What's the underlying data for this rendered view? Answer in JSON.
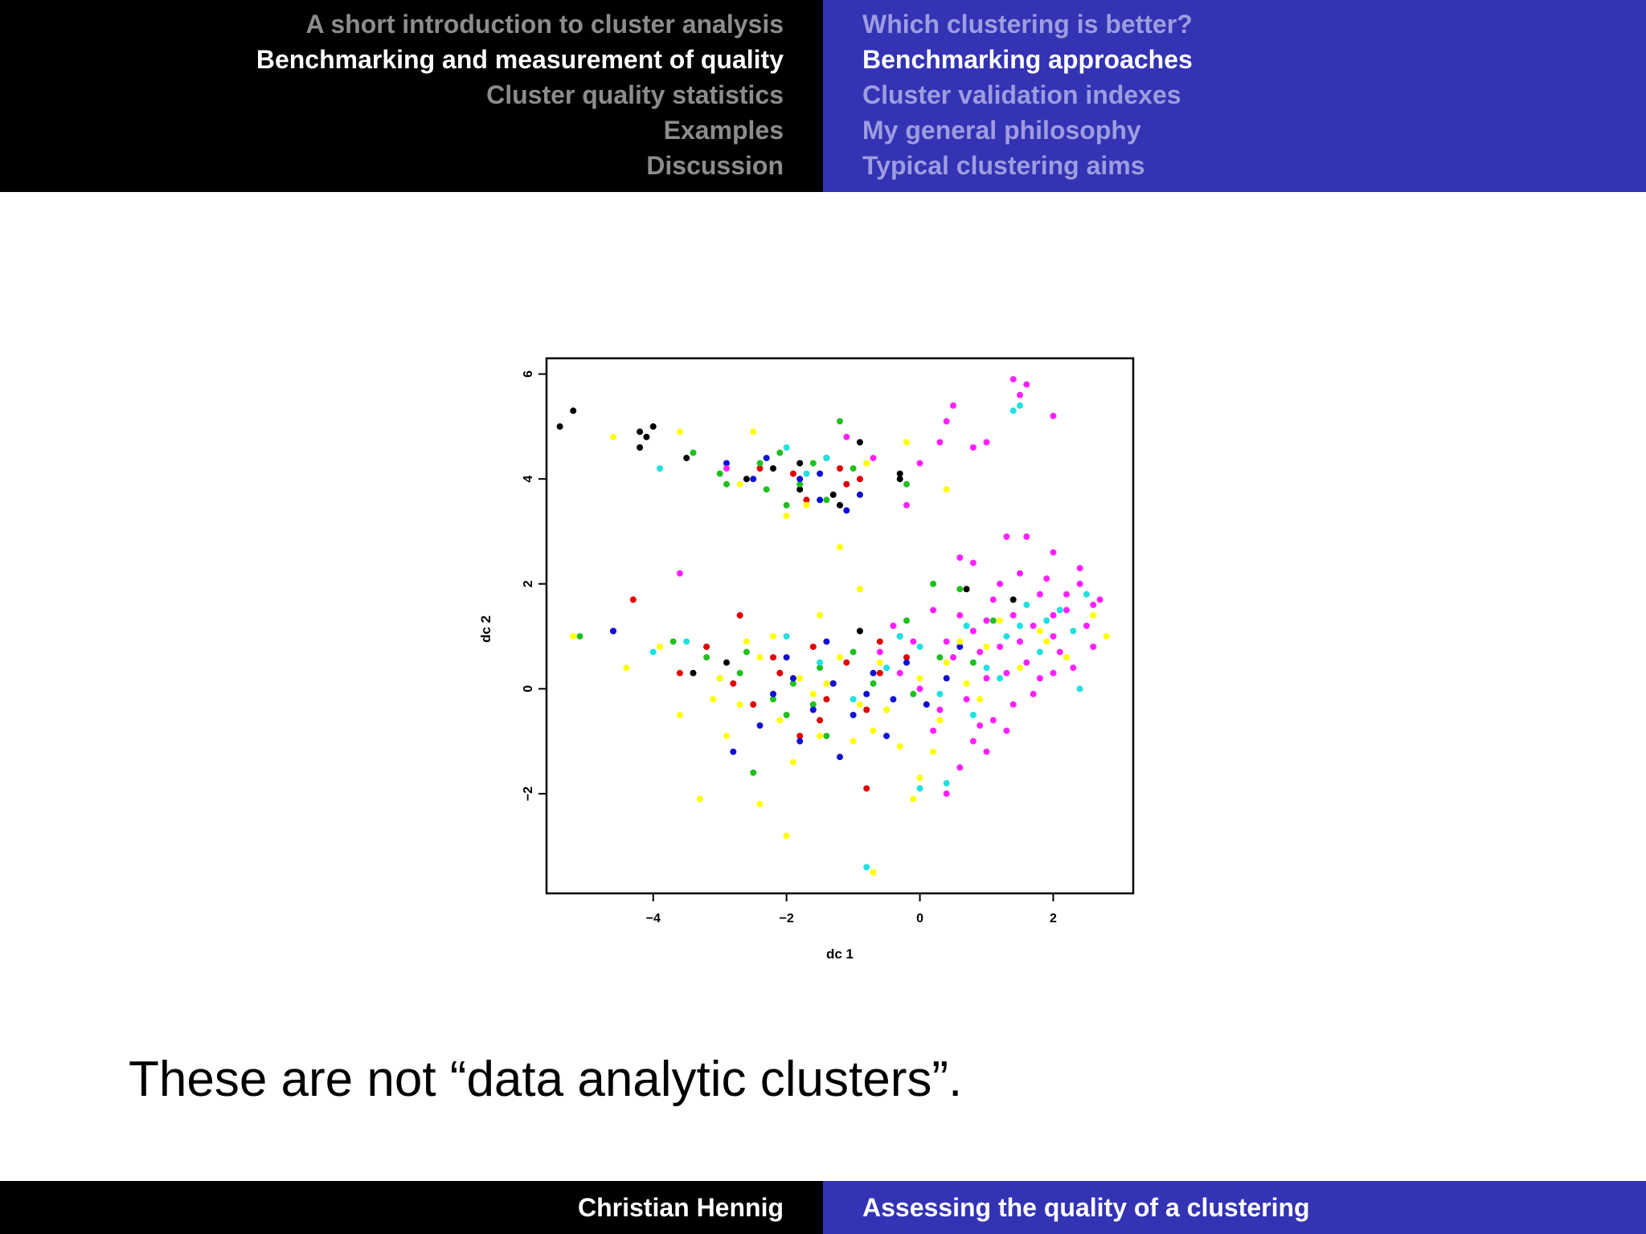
{
  "header": {
    "sections": [
      {
        "label": "A short introduction to cluster analysis",
        "active": false
      },
      {
        "label": "Benchmarking and measurement of quality",
        "active": true
      },
      {
        "label": "Cluster quality statistics",
        "active": false
      },
      {
        "label": "Examples",
        "active": false
      },
      {
        "label": "Discussion",
        "active": false
      }
    ],
    "subsections": [
      {
        "label": "Which clustering is better?",
        "active": false
      },
      {
        "label": "Benchmarking approaches",
        "active": true
      },
      {
        "label": "Cluster validation indexes",
        "active": false
      },
      {
        "label": "My general philosophy",
        "active": false
      },
      {
        "label": "Typical clustering aims",
        "active": false
      }
    ]
  },
  "caption": "These are not “data analytic clusters”.",
  "footer": {
    "author": "Christian Hennig",
    "title": "Assessing the quality of a clustering"
  },
  "colors": {
    "header_left_bg": "#000000",
    "header_right_bg": "#3333b3",
    "black": "#000000",
    "red": "#e00000",
    "green": "#20c020",
    "blue": "#1010d0",
    "cyan": "#20e0e0",
    "magenta": "#ff20ff",
    "yellow": "#ffff00"
  },
  "chart_data": {
    "type": "scatter",
    "xlabel": "dc 1",
    "ylabel": "dc 2",
    "xlim": [
      -5.6,
      3.2
    ],
    "ylim": [
      -3.9,
      6.3
    ],
    "xticks": [
      -4,
      -2,
      0,
      2
    ],
    "yticks": [
      -2,
      0,
      2,
      4,
      6
    ],
    "xtick_labels": [
      "−4",
      "−2",
      "0",
      "2"
    ],
    "ytick_labels": [
      "−2",
      "0",
      "2",
      "4",
      "6"
    ],
    "grid": false,
    "series": [
      {
        "color": "#000000",
        "points": [
          [
            -5.4,
            5.0
          ],
          [
            -5.2,
            5.3
          ],
          [
            -4.2,
            4.9
          ],
          [
            -4.0,
            5.0
          ],
          [
            -4.1,
            4.8
          ],
          [
            -4.2,
            4.6
          ],
          [
            -3.5,
            4.4
          ],
          [
            -2.6,
            4.0
          ],
          [
            -2.2,
            4.2
          ],
          [
            -1.8,
            3.8
          ],
          [
            -1.4,
            4.4
          ],
          [
            -1.3,
            3.7
          ],
          [
            -0.9,
            4.7
          ],
          [
            -0.3,
            4.0
          ],
          [
            -0.3,
            4.1
          ],
          [
            -0.9,
            1.1
          ],
          [
            -0.3,
            1.0
          ],
          [
            0.7,
            1.9
          ],
          [
            1.4,
            1.7
          ],
          [
            -3.4,
            0.3
          ],
          [
            -1.8,
            4.3
          ],
          [
            -1.2,
            3.5
          ],
          [
            -2.9,
            0.5
          ]
        ]
      },
      {
        "color": "#e00000",
        "points": [
          [
            -4.3,
            1.7
          ],
          [
            -4.6,
            1.1
          ],
          [
            -2.7,
            1.4
          ],
          [
            -3.2,
            0.8
          ],
          [
            -3.6,
            0.3
          ],
          [
            -2.4,
            4.2
          ],
          [
            -1.2,
            4.2
          ],
          [
            -1.1,
            3.9
          ],
          [
            -1.7,
            3.6
          ],
          [
            -0.9,
            4.0
          ],
          [
            -1.6,
            0.8
          ],
          [
            -2.1,
            0.3
          ],
          [
            -1.3,
            0.1
          ],
          [
            -0.8,
            -0.4
          ],
          [
            -0.2,
            0.6
          ],
          [
            -1.8,
            -0.9
          ],
          [
            -1.1,
            0.5
          ],
          [
            -0.6,
            0.9
          ],
          [
            -0.8,
            -1.9
          ],
          [
            -2.5,
            -0.3
          ],
          [
            -1.5,
            -0.6
          ],
          [
            -2.8,
            0.1
          ],
          [
            -1.9,
            4.1
          ],
          [
            -0.6,
            0.3
          ],
          [
            -1.4,
            -0.2
          ],
          [
            -2.2,
            0.6
          ]
        ]
      },
      {
        "color": "#20c020",
        "points": [
          [
            -5.1,
            1.0
          ],
          [
            -3.7,
            0.9
          ],
          [
            -3.2,
            0.6
          ],
          [
            -3.4,
            4.5
          ],
          [
            -2.9,
            3.9
          ],
          [
            -3.0,
            4.1
          ],
          [
            -2.1,
            4.5
          ],
          [
            -2.3,
            3.8
          ],
          [
            -1.6,
            4.3
          ],
          [
            -2.0,
            3.5
          ],
          [
            -1.2,
            5.1
          ],
          [
            -1.0,
            4.2
          ],
          [
            -0.2,
            3.9
          ],
          [
            -2.6,
            0.7
          ],
          [
            -2.2,
            -0.2
          ],
          [
            -1.9,
            0.1
          ],
          [
            -1.5,
            0.4
          ],
          [
            -0.7,
            0.1
          ],
          [
            -0.2,
            1.3
          ],
          [
            0.2,
            2.0
          ],
          [
            0.6,
            1.9
          ],
          [
            1.1,
            1.3
          ],
          [
            -2.5,
            -1.6
          ],
          [
            -1.4,
            -0.9
          ],
          [
            -0.5,
            -0.4
          ],
          [
            0.3,
            0.6
          ],
          [
            -3.0,
            0.2
          ],
          [
            -2.0,
            -0.5
          ],
          [
            -1.0,
            0.7
          ],
          [
            -0.1,
            -0.1
          ],
          [
            0.8,
            0.5
          ],
          [
            -2.4,
            4.3
          ],
          [
            -1.8,
            3.9
          ],
          [
            -1.4,
            3.6
          ],
          [
            -2.7,
            0.3
          ],
          [
            -1.6,
            -0.3
          ]
        ]
      },
      {
        "color": "#1010d0",
        "points": [
          [
            -4.6,
            1.1
          ],
          [
            -2.9,
            4.3
          ],
          [
            -2.5,
            4.0
          ],
          [
            -2.3,
            4.4
          ],
          [
            -1.8,
            4.0
          ],
          [
            -1.5,
            4.1
          ],
          [
            -1.5,
            3.6
          ],
          [
            -0.9,
            3.7
          ],
          [
            -1.1,
            3.4
          ],
          [
            -2.8,
            -1.2
          ],
          [
            -2.4,
            -0.7
          ],
          [
            -2.2,
            -0.1
          ],
          [
            -1.9,
            0.2
          ],
          [
            -1.6,
            -0.4
          ],
          [
            -1.3,
            0.1
          ],
          [
            -1.0,
            -0.5
          ],
          [
            -0.7,
            0.3
          ],
          [
            -0.5,
            -0.9
          ],
          [
            -0.2,
            0.5
          ],
          [
            0.1,
            -0.3
          ],
          [
            0.4,
            0.2
          ],
          [
            -1.8,
            -1.0
          ],
          [
            -1.2,
            -1.3
          ],
          [
            -0.4,
            -0.2
          ],
          [
            -2.0,
            0.6
          ],
          [
            -1.4,
            0.9
          ],
          [
            -0.8,
            -0.1
          ],
          [
            0.6,
            0.8
          ]
        ]
      },
      {
        "color": "#20e0e0",
        "points": [
          [
            -3.9,
            4.2
          ],
          [
            -2.0,
            4.6
          ],
          [
            -1.4,
            4.4
          ],
          [
            -1.7,
            4.1
          ],
          [
            1.4,
            5.3
          ],
          [
            1.5,
            5.4
          ],
          [
            -4.0,
            0.7
          ],
          [
            -3.5,
            0.9
          ],
          [
            -2.0,
            1.0
          ],
          [
            -1.5,
            0.5
          ],
          [
            -1.0,
            -0.2
          ],
          [
            -0.5,
            0.4
          ],
          [
            0.0,
            0.8
          ],
          [
            0.3,
            -0.1
          ],
          [
            0.7,
            1.2
          ],
          [
            1.0,
            0.4
          ],
          [
            1.3,
            1.0
          ],
          [
            1.6,
            1.6
          ],
          [
            1.9,
            1.3
          ],
          [
            2.3,
            1.1
          ],
          [
            2.5,
            1.8
          ],
          [
            0.4,
            -1.8
          ],
          [
            0.0,
            -1.9
          ],
          [
            -0.8,
            -3.4
          ],
          [
            2.1,
            1.5
          ],
          [
            1.2,
            0.2
          ],
          [
            0.8,
            -0.5
          ],
          [
            1.8,
            0.7
          ],
          [
            2.4,
            0.0
          ],
          [
            -0.3,
            1.0
          ],
          [
            0.5,
            0.6
          ],
          [
            1.5,
            1.2
          ]
        ]
      },
      {
        "color": "#ffff00",
        "points": [
          [
            -5.2,
            1.0
          ],
          [
            -4.6,
            4.8
          ],
          [
            -3.6,
            4.9
          ],
          [
            -2.5,
            4.9
          ],
          [
            -2.7,
            3.9
          ],
          [
            -2.0,
            3.3
          ],
          [
            -1.7,
            3.5
          ],
          [
            -1.2,
            2.7
          ],
          [
            -0.8,
            4.3
          ],
          [
            -0.2,
            4.7
          ],
          [
            0.4,
            3.8
          ],
          [
            -0.9,
            1.9
          ],
          [
            -1.5,
            1.4
          ],
          [
            -4.4,
            0.4
          ],
          [
            -3.9,
            0.8
          ],
          [
            -3.6,
            -0.5
          ],
          [
            -3.3,
            -2.1
          ],
          [
            -2.4,
            -2.2
          ],
          [
            -2.0,
            -2.8
          ],
          [
            -0.1,
            -2.1
          ],
          [
            0.0,
            -1.7
          ],
          [
            -0.7,
            -3.5
          ],
          [
            -3.0,
            0.2
          ],
          [
            -2.7,
            -0.3
          ],
          [
            -2.4,
            0.6
          ],
          [
            -2.1,
            -0.6
          ],
          [
            -1.8,
            0.2
          ],
          [
            -1.5,
            -0.9
          ],
          [
            -1.2,
            0.6
          ],
          [
            -0.9,
            -0.3
          ],
          [
            -0.6,
            0.5
          ],
          [
            -0.3,
            -1.1
          ],
          [
            0.0,
            0.2
          ],
          [
            0.3,
            -0.6
          ],
          [
            0.6,
            0.9
          ],
          [
            0.9,
            -0.2
          ],
          [
            1.2,
            1.3
          ],
          [
            1.5,
            0.4
          ],
          [
            1.8,
            1.1
          ],
          [
            2.2,
            0.6
          ],
          [
            2.8,
            1.0
          ],
          [
            -2.9,
            -0.9
          ],
          [
            -1.9,
            -1.4
          ],
          [
            -1.0,
            -1.0
          ],
          [
            0.2,
            -1.2
          ],
          [
            -2.2,
            1.0
          ],
          [
            -1.4,
            0.1
          ],
          [
            -0.5,
            -0.4
          ],
          [
            0.7,
            0.1
          ],
          [
            1.9,
            0.9
          ],
          [
            2.6,
            1.4
          ],
          [
            -3.1,
            -0.2
          ],
          [
            -2.6,
            0.9
          ],
          [
            -1.6,
            -0.1
          ],
          [
            -0.7,
            -0.8
          ],
          [
            0.4,
            0.5
          ],
          [
            1.0,
            0.8
          ]
        ]
      },
      {
        "color": "#ff20ff",
        "points": [
          [
            1.6,
            5.8
          ],
          [
            1.4,
            5.9
          ],
          [
            1.5,
            5.6
          ],
          [
            2.0,
            5.2
          ],
          [
            0.5,
            5.4
          ],
          [
            0.4,
            5.1
          ],
          [
            0.3,
            4.7
          ],
          [
            0.8,
            4.6
          ],
          [
            1.0,
            4.7
          ],
          [
            0.0,
            4.3
          ],
          [
            -0.2,
            3.5
          ],
          [
            -0.7,
            4.4
          ],
          [
            -1.1,
            4.8
          ],
          [
            -2.9,
            4.2
          ],
          [
            -3.6,
            2.2
          ],
          [
            1.3,
            2.9
          ],
          [
            1.6,
            2.9
          ],
          [
            2.0,
            2.6
          ],
          [
            0.6,
            2.5
          ],
          [
            0.8,
            2.4
          ],
          [
            -0.4,
            1.2
          ],
          [
            -0.1,
            0.9
          ],
          [
            0.2,
            1.5
          ],
          [
            0.5,
            0.6
          ],
          [
            0.8,
            1.1
          ],
          [
            1.0,
            0.2
          ],
          [
            1.2,
            0.8
          ],
          [
            1.4,
            1.4
          ],
          [
            1.6,
            0.5
          ],
          [
            1.8,
            1.8
          ],
          [
            2.0,
            1.0
          ],
          [
            2.2,
            1.5
          ],
          [
            2.4,
            2.0
          ],
          [
            2.5,
            1.2
          ],
          [
            2.6,
            0.8
          ],
          [
            2.7,
            1.7
          ],
          [
            2.3,
            0.4
          ],
          [
            2.0,
            0.3
          ],
          [
            1.7,
            -0.1
          ],
          [
            1.4,
            -0.3
          ],
          [
            1.1,
            -0.6
          ],
          [
            0.8,
            -1.0
          ],
          [
            0.6,
            -1.5
          ],
          [
            0.4,
            -2.0
          ],
          [
            1.3,
            -0.8
          ],
          [
            1.0,
            -1.2
          ],
          [
            0.3,
            -0.4
          ],
          [
            0.0,
            0.0
          ],
          [
            -0.3,
            0.3
          ],
          [
            -0.6,
            0.7
          ],
          [
            1.5,
            2.2
          ],
          [
            1.9,
            2.1
          ],
          [
            2.4,
            2.3
          ],
          [
            1.1,
            1.7
          ],
          [
            0.9,
            0.7
          ],
          [
            1.3,
            0.3
          ],
          [
            1.7,
            1.2
          ],
          [
            2.1,
            0.7
          ],
          [
            2.6,
            1.6
          ],
          [
            0.7,
            -0.2
          ],
          [
            0.4,
            0.9
          ],
          [
            1.0,
            1.3
          ],
          [
            1.5,
            0.9
          ],
          [
            1.8,
            0.2
          ],
          [
            2.2,
            1.8
          ],
          [
            0.6,
            1.4
          ],
          [
            1.2,
            2.0
          ],
          [
            2.0,
            1.4
          ],
          [
            0.2,
            -0.8
          ],
          [
            0.9,
            -0.7
          ]
        ]
      }
    ]
  }
}
